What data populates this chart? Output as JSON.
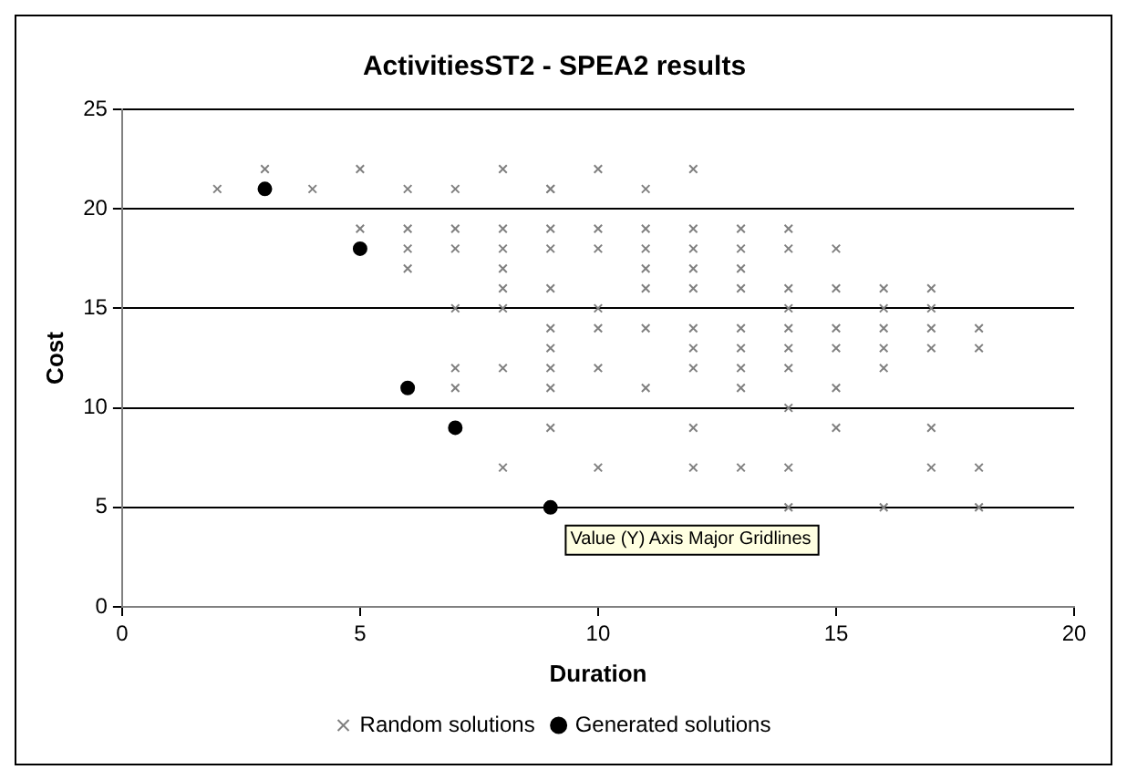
{
  "chart_data": {
    "type": "scatter",
    "title": "ActivitiesST2 - SPEA2 results",
    "xlabel": "Duration",
    "ylabel": "Cost",
    "xlim": [
      0,
      20
    ],
    "xticks": [
      0,
      5,
      10,
      15,
      20
    ],
    "ylim": [
      0,
      25
    ],
    "yticks": [
      0,
      5,
      10,
      15,
      20,
      25
    ],
    "grid": "y",
    "legend": "bottom",
    "annotations": [
      "Value (Y) Axis Major Gridlines"
    ],
    "series": [
      {
        "name": "Random solutions",
        "color": "#808080",
        "marker": "cross",
        "x": [
          2,
          4,
          6,
          7,
          9,
          11,
          3,
          5,
          8,
          10,
          12,
          5,
          6,
          6,
          6,
          7,
          7,
          7,
          7,
          7,
          8,
          8,
          8,
          8,
          8,
          8,
          8,
          9,
          9,
          9,
          9,
          9,
          9,
          9,
          9,
          9,
          10,
          10,
          10,
          10,
          10,
          10,
          11,
          11,
          11,
          11,
          11,
          11,
          12,
          12,
          12,
          12,
          12,
          12,
          12,
          12,
          12,
          13,
          13,
          13,
          13,
          13,
          13,
          13,
          13,
          13,
          14,
          14,
          14,
          14,
          14,
          14,
          14,
          14,
          14,
          14,
          15,
          15,
          15,
          15,
          15,
          15,
          16,
          16,
          16,
          16,
          16,
          16,
          17,
          17,
          17,
          17,
          17,
          17,
          18,
          18,
          18,
          18
        ],
        "values": [
          21,
          21,
          21,
          21,
          21,
          21,
          22,
          22,
          22,
          22,
          22,
          19,
          19,
          18,
          17,
          12,
          19,
          18,
          15,
          11,
          19,
          18,
          17,
          16,
          15,
          12,
          7,
          19,
          18,
          16,
          14,
          13,
          12,
          11,
          9,
          21,
          19,
          18,
          15,
          14,
          12,
          7,
          19,
          18,
          17,
          16,
          14,
          11,
          19,
          18,
          17,
          16,
          14,
          13,
          12,
          9,
          7,
          19,
          18,
          17,
          16,
          14,
          13,
          12,
          11,
          7,
          19,
          18,
          16,
          15,
          14,
          13,
          12,
          10,
          7,
          5,
          18,
          16,
          14,
          13,
          11,
          9,
          16,
          15,
          14,
          13,
          12,
          5,
          16,
          15,
          14,
          13,
          9,
          7,
          14,
          13,
          7,
          5
        ]
      },
      {
        "name": "Generated solutions",
        "color": "#000000",
        "marker": "circle",
        "x": [
          3,
          5,
          6,
          7,
          9
        ],
        "values": [
          21,
          18,
          11,
          9,
          5
        ]
      }
    ]
  }
}
